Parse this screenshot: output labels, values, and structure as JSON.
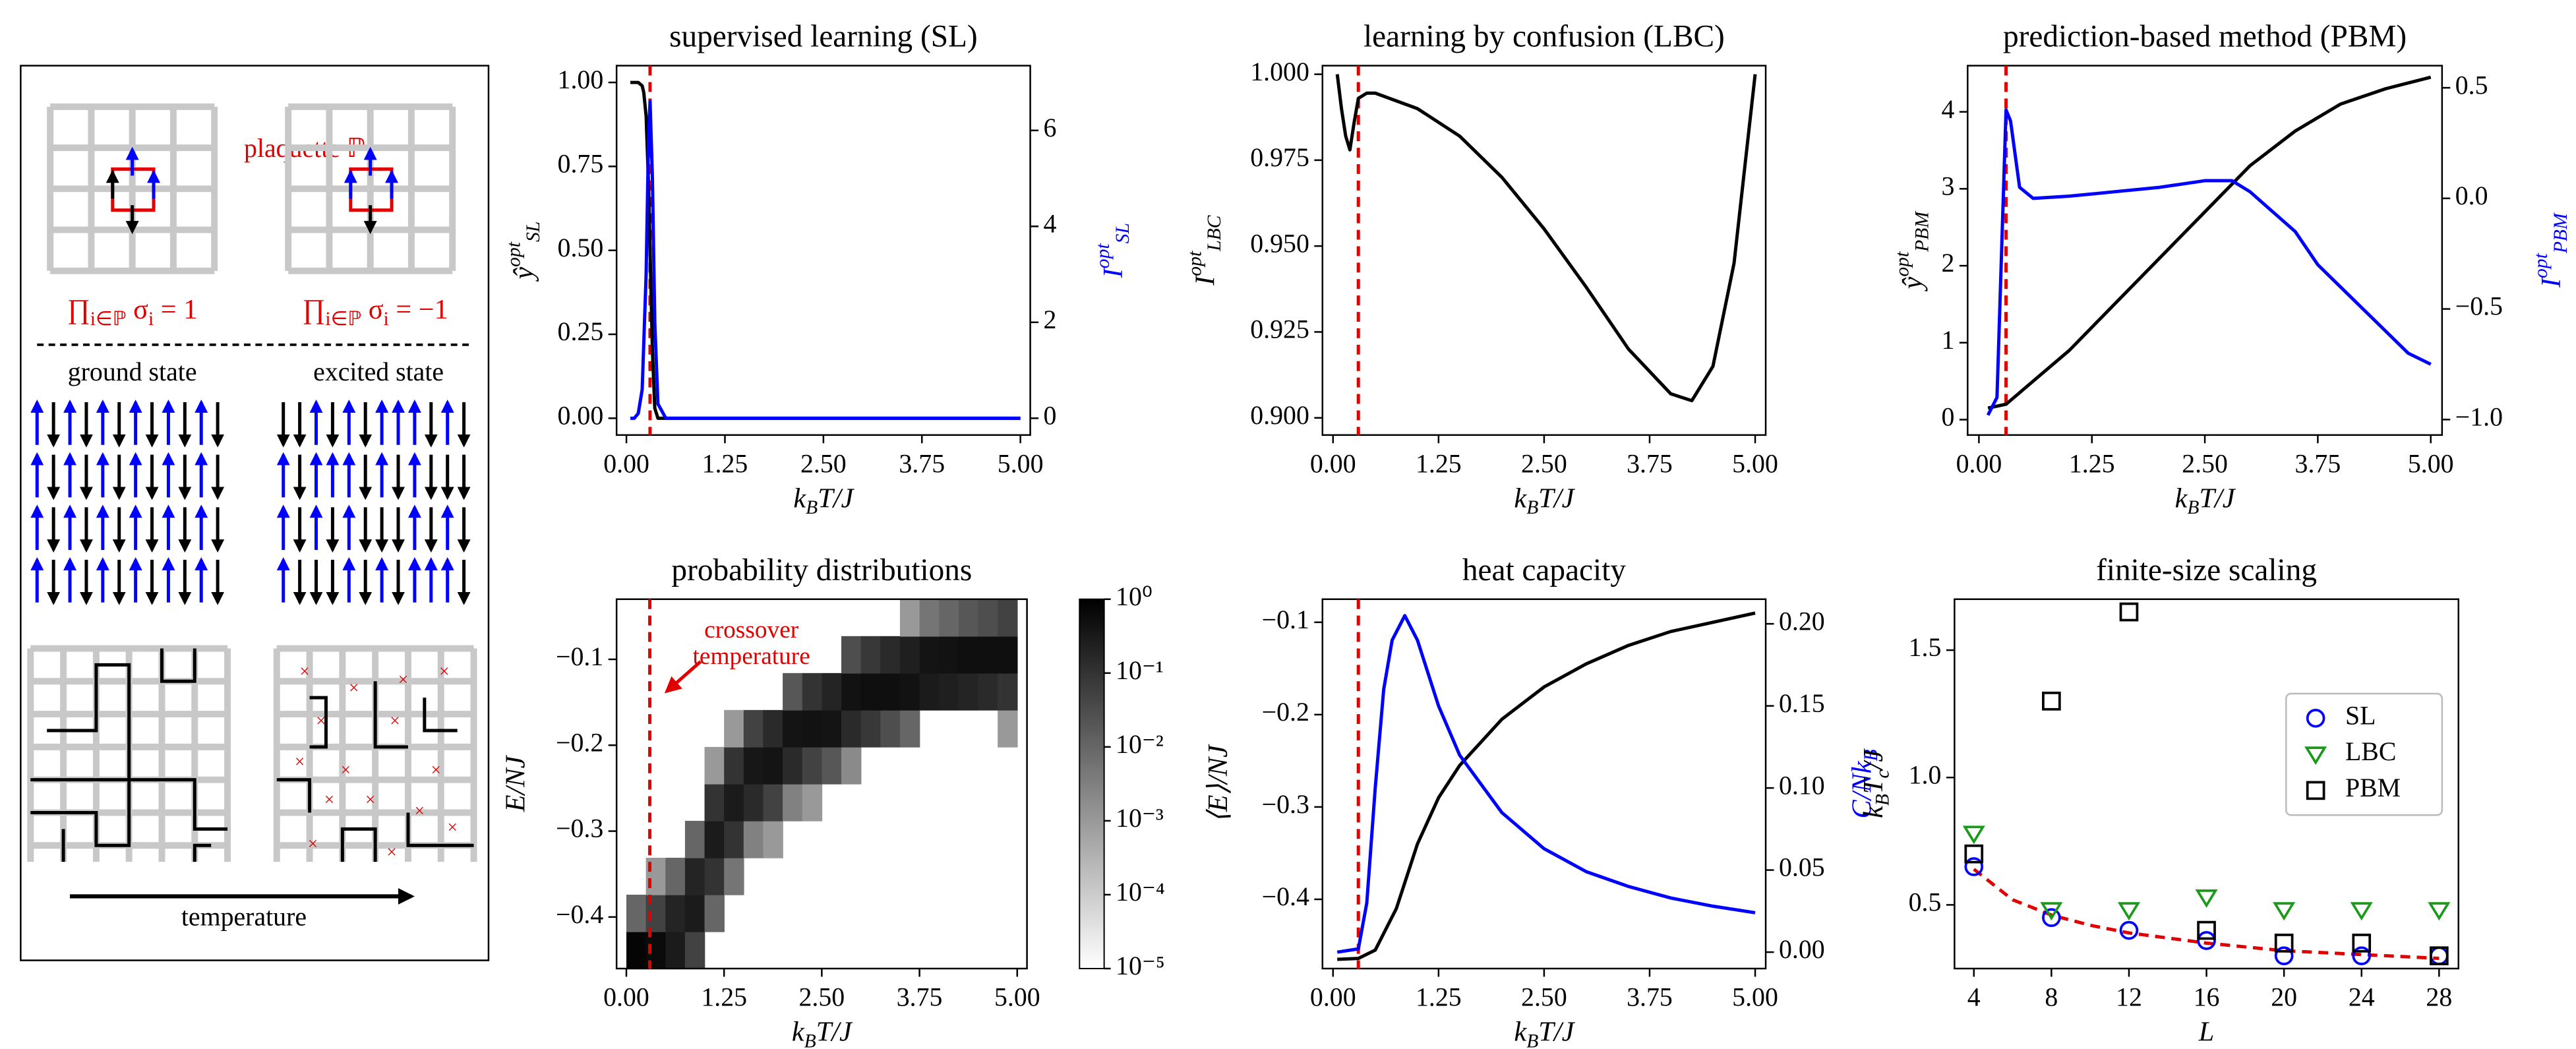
{
  "schematic": {
    "plaquette_label": "plaquette ℙ",
    "product_plus": "∏_{i∈ℙ} σ_{i} = 1",
    "product_minus": "∏_{i∈ℙ} σ_{i} = −1",
    "ground_state": "ground state",
    "excited_state": "excited state",
    "arrow_label": "temperature"
  },
  "chart_data": [
    {
      "type": "line",
      "title": "supervised learning (SL)",
      "xlabel": "k_{B}T/J",
      "ylabel": "ŷ^{opt}_{SL}",
      "y2label": "I^{opt}_{SL}",
      "xlim": [
        -0.125,
        5.125
      ],
      "xticks": [
        {
          "value": 0,
          "label": "0.00"
        },
        {
          "value": 1.25,
          "label": "1.25"
        },
        {
          "value": 2.5,
          "label": "2.50"
        },
        {
          "value": 3.75,
          "label": "3.75"
        },
        {
          "value": 5,
          "label": "5.00"
        }
      ],
      "ylim": [
        -0.05,
        1.05
      ],
      "yticks": [
        {
          "value": 0,
          "label": "0.00"
        },
        {
          "value": 0.25,
          "label": "0.25"
        },
        {
          "value": 0.5,
          "label": "0.50"
        },
        {
          "value": 0.75,
          "label": "0.75"
        },
        {
          "value": 1,
          "label": "1.00"
        }
      ],
      "y2lim": [
        -0.35,
        7.35
      ],
      "y2ticks": [
        0,
        2,
        4,
        6
      ],
      "y2color": "#0000ff",
      "crossover": 0.3,
      "crossover_color": "#e00000",
      "series": [
        {
          "color": "#000000",
          "x": [
            0.05,
            0.1,
            0.15,
            0.2,
            0.22,
            0.25,
            0.28,
            0.3,
            0.33,
            0.36,
            0.4,
            0.5,
            1,
            2,
            3,
            4,
            5
          ],
          "values": [
            1,
            1,
            1,
            0.99,
            0.97,
            0.9,
            0.7,
            0.5,
            0.2,
            0.03,
            0,
            0,
            0,
            0,
            0,
            0,
            0
          ]
        },
        {
          "color": "#0000ff",
          "axis": "y2",
          "x": [
            0.05,
            0.1,
            0.15,
            0.2,
            0.25,
            0.28,
            0.3,
            0.33,
            0.36,
            0.4,
            0.5,
            1,
            2,
            3,
            4,
            5
          ],
          "values": [
            0,
            0,
            0.1,
            0.6,
            3,
            5.8,
            6.6,
            5,
            2,
            0.3,
            0,
            0,
            0,
            0,
            0,
            0
          ]
        }
      ]
    },
    {
      "type": "line",
      "title": "learning by confusion (LBC)",
      "xlabel": "k_{B}T/J",
      "ylabel": "I^{opt}_{LBC}",
      "xlim": [
        -0.125,
        5.125
      ],
      "xticks": [
        {
          "value": 0,
          "label": "0.00"
        },
        {
          "value": 1.25,
          "label": "1.25"
        },
        {
          "value": 2.5,
          "label": "2.50"
        },
        {
          "value": 3.75,
          "label": "3.75"
        },
        {
          "value": 5,
          "label": "5.00"
        }
      ],
      "ylim": [
        0.895,
        1.0025
      ],
      "yticks": [
        {
          "value": 0.9,
          "label": "0.900"
        },
        {
          "value": 0.925,
          "label": "0.925"
        },
        {
          "value": 0.95,
          "label": "0.950"
        },
        {
          "value": 0.975,
          "label": "0.975"
        },
        {
          "value": 1,
          "label": "1.000"
        }
      ],
      "crossover": 0.3,
      "crossover_color": "#e00000",
      "series": [
        {
          "color": "#000000",
          "x": [
            0.05,
            0.1,
            0.15,
            0.2,
            0.25,
            0.3,
            0.4,
            0.5,
            1,
            1.5,
            2,
            2.5,
            3,
            3.5,
            4,
            4.25,
            4.5,
            4.75,
            5
          ],
          "values": [
            1,
            0.99,
            0.982,
            0.978,
            0.986,
            0.993,
            0.9945,
            0.9945,
            0.99,
            0.982,
            0.97,
            0.955,
            0.938,
            0.92,
            0.907,
            0.905,
            0.915,
            0.945,
            1
          ]
        }
      ]
    },
    {
      "type": "line",
      "title": "prediction-based method (PBM)",
      "xlabel": "k_{B}T/J",
      "ylabel": "ŷ^{opt}_{PBM}",
      "y2label": "I^{opt}_{PBM}",
      "xlim": [
        -0.125,
        5.125
      ],
      "xticks": [
        {
          "value": 0,
          "label": "0.00"
        },
        {
          "value": 1.25,
          "label": "1.25"
        },
        {
          "value": 2.5,
          "label": "2.50"
        },
        {
          "value": 3.75,
          "label": "3.75"
        },
        {
          "value": 5,
          "label": "5.00"
        }
      ],
      "ylim": [
        -0.2,
        4.6
      ],
      "yticks": [
        0,
        1,
        2,
        3,
        4
      ],
      "y2lim": [
        -1.07,
        0.6
      ],
      "y2ticks": [
        {
          "value": -1,
          "label": "−1.0"
        },
        {
          "value": -0.5,
          "label": "−0.5"
        },
        {
          "value": 0,
          "label": "0.0"
        },
        {
          "value": 0.5,
          "label": "0.5"
        }
      ],
      "y2color": "#0000ff",
      "crossover": 0.3,
      "crossover_color": "#e00000",
      "series": [
        {
          "color": "#000000",
          "x": [
            0.1,
            0.3,
            0.5,
            1,
            1.5,
            2,
            2.5,
            3,
            3.5,
            4,
            4.5,
            5
          ],
          "values": [
            0.15,
            0.2,
            0.4,
            0.9,
            1.5,
            2.1,
            2.7,
            3.3,
            3.75,
            4.1,
            4.3,
            4.45
          ]
        },
        {
          "color": "#0000ff",
          "axis": "y2",
          "x": [
            0.1,
            0.2,
            0.3,
            0.35,
            0.45,
            0.6,
            1,
            1.5,
            2,
            2.5,
            2.8,
            3,
            3.5,
            3.75,
            4,
            4.5,
            4.75,
            5
          ],
          "values": [
            -0.98,
            -0.9,
            0.4,
            0.35,
            0.05,
            0,
            0.01,
            0.03,
            0.05,
            0.08,
            0.08,
            0.03,
            -0.15,
            -0.3,
            -0.4,
            -0.6,
            -0.7,
            -0.75
          ]
        }
      ]
    },
    {
      "type": "heatmap",
      "title": "probability distributions",
      "xlabel": "k_{B}T/J",
      "ylabel": "E/NJ",
      "xlim": [
        -0.125,
        5.125
      ],
      "xticks": [
        {
          "value": 0,
          "label": "0.00"
        },
        {
          "value": 1.25,
          "label": "1.25"
        },
        {
          "value": 2.5,
          "label": "2.50"
        },
        {
          "value": 3.75,
          "label": "3.75"
        },
        {
          "value": 5,
          "label": "5.00"
        }
      ],
      "ylim": [
        -0.46,
        -0.03
      ],
      "yticks": [
        {
          "value": -0.4,
          "label": "−0.4"
        },
        {
          "value": -0.3,
          "label": "−0.3"
        },
        {
          "value": -0.2,
          "label": "−0.2"
        },
        {
          "value": -0.1,
          "label": "−0.1"
        }
      ],
      "crossover": 0.3,
      "crossover_color": "#e00000",
      "annotation": [
        "crossover",
        "temperature"
      ],
      "xbins": [
        0,
        0.25,
        0.5,
        0.75,
        1,
        1.25,
        1.5,
        1.75,
        2,
        2.25,
        2.5,
        2.75,
        3,
        3.25,
        3.5,
        3.75,
        4,
        4.25,
        4.5,
        4.75,
        5
      ],
      "ybins": [
        -0.46,
        -0.417,
        -0.374,
        -0.331,
        -0.288,
        -0.245,
        -0.202,
        -0.159,
        -0.116,
        -0.073,
        -0.03
      ],
      "z": [
        [
          0.8,
          0.6,
          0.3,
          0.05,
          null,
          null,
          null,
          null,
          null,
          null,
          null,
          null,
          null,
          null,
          null,
          null,
          null,
          null,
          null,
          null
        ],
        [
          0.01,
          0.05,
          0.2,
          0.3,
          0.01,
          null,
          null,
          null,
          null,
          null,
          null,
          null,
          null,
          null,
          null,
          null,
          null,
          null,
          null,
          null
        ],
        [
          null,
          0.001,
          0.01,
          0.2,
          0.1,
          0.005,
          null,
          null,
          null,
          null,
          null,
          null,
          null,
          null,
          null,
          null,
          null,
          null,
          null,
          null
        ],
        [
          null,
          null,
          null,
          0.01,
          0.3,
          0.1,
          0.003,
          0.001,
          null,
          null,
          null,
          null,
          null,
          null,
          null,
          null,
          null,
          null,
          null,
          null
        ],
        [
          null,
          null,
          null,
          null,
          0.1,
          0.3,
          0.15,
          0.05,
          0.003,
          0.001,
          null,
          null,
          null,
          null,
          null,
          null,
          null,
          null,
          null,
          null
        ],
        [
          null,
          null,
          null,
          null,
          0.001,
          0.1,
          0.35,
          0.4,
          0.15,
          0.05,
          0.02,
          0.002,
          null,
          null,
          null,
          null,
          null,
          null,
          null,
          null
        ],
        [
          null,
          null,
          null,
          null,
          null,
          0.001,
          0.05,
          0.15,
          0.4,
          0.45,
          0.4,
          0.15,
          0.08,
          0.03,
          0.01,
          null,
          null,
          null,
          null,
          0.001
        ],
        [
          null,
          null,
          null,
          null,
          null,
          null,
          null,
          null,
          0.02,
          0.1,
          0.2,
          0.45,
          0.5,
          0.5,
          0.45,
          0.3,
          0.25,
          0.2,
          0.15,
          0.1
        ],
        [
          null,
          null,
          null,
          null,
          null,
          null,
          null,
          null,
          null,
          null,
          null,
          0.03,
          0.08,
          0.15,
          0.25,
          0.4,
          0.45,
          0.5,
          0.5,
          0.5
        ],
        [
          null,
          null,
          null,
          null,
          null,
          null,
          null,
          null,
          null,
          null,
          null,
          null,
          null,
          null,
          0.001,
          0.005,
          0.01,
          0.02,
          0.03,
          0.05
        ]
      ],
      "colorbar": {
        "scale": "log",
        "lim": [
          1e-05,
          1
        ],
        "ticks": [
          {
            "value": 1,
            "label": "10⁰"
          },
          {
            "value": 0.1,
            "label": "10⁻¹"
          },
          {
            "value": 0.01,
            "label": "10⁻²"
          },
          {
            "value": 0.001,
            "label": "10⁻³"
          },
          {
            "value": 0.0001,
            "label": "10⁻⁴"
          },
          {
            "value": 1e-05,
            "label": "10⁻⁵"
          }
        ]
      }
    },
    {
      "type": "line",
      "title": "heat capacity",
      "xlabel": "k_{B}T/J",
      "ylabel": "⟨E⟩/NJ",
      "y2label": "C/Nk_{B}",
      "xlim": [
        -0.125,
        5.125
      ],
      "xticks": [
        {
          "value": 0,
          "label": "0.00"
        },
        {
          "value": 1.25,
          "label": "1.25"
        },
        {
          "value": 2.5,
          "label": "2.50"
        },
        {
          "value": 3.75,
          "label": "3.75"
        },
        {
          "value": 5,
          "label": "5.00"
        }
      ],
      "ylim": [
        -0.475,
        -0.075
      ],
      "yticks": [
        {
          "value": -0.4,
          "label": "−0.4"
        },
        {
          "value": -0.3,
          "label": "−0.3"
        },
        {
          "value": -0.2,
          "label": "−0.2"
        },
        {
          "value": -0.1,
          "label": "−0.1"
        }
      ],
      "y2lim": [
        -0.01,
        0.215
      ],
      "y2ticks": [
        {
          "value": 0,
          "label": "0.00"
        },
        {
          "value": 0.05,
          "label": "0.05"
        },
        {
          "value": 0.1,
          "label": "0.10"
        },
        {
          "value": 0.15,
          "label": "0.15"
        },
        {
          "value": 0.2,
          "label": "0.20"
        }
      ],
      "y2color": "#0000ff",
      "crossover": 0.3,
      "crossover_color": "#e00000",
      "series": [
        {
          "color": "#000000",
          "x": [
            0.05,
            0.3,
            0.5,
            0.75,
            1,
            1.25,
            1.5,
            2,
            2.5,
            3,
            3.5,
            4,
            4.5,
            5
          ],
          "values": [
            -0.465,
            -0.464,
            -0.455,
            -0.41,
            -0.34,
            -0.29,
            -0.255,
            -0.205,
            -0.17,
            -0.145,
            -0.125,
            -0.11,
            -0.1,
            -0.09
          ]
        },
        {
          "color": "#0000ff",
          "axis": "y2",
          "x": [
            0.05,
            0.3,
            0.4,
            0.5,
            0.6,
            0.7,
            0.85,
            1,
            1.25,
            1.5,
            2,
            2.5,
            3,
            3.5,
            4,
            4.5,
            5
          ],
          "values": [
            0,
            0.002,
            0.03,
            0.1,
            0.16,
            0.19,
            0.205,
            0.19,
            0.15,
            0.12,
            0.085,
            0.063,
            0.049,
            0.04,
            0.033,
            0.028,
            0.024
          ]
        }
      ]
    },
    {
      "type": "scatter",
      "title": "finite-size scaling",
      "xlabel": "L",
      "ylabel": "k_{B}T_{c}/J",
      "xlim": [
        3,
        29
      ],
      "xticks": [
        4,
        8,
        12,
        16,
        20,
        24,
        28
      ],
      "ylim": [
        0.25,
        1.7
      ],
      "yticks": [
        {
          "value": 0.5,
          "label": "0.5"
        },
        {
          "value": 1,
          "label": "1.0"
        },
        {
          "value": 1.5,
          "label": "1.5"
        }
      ],
      "legend": "right",
      "series": [
        {
          "name": "SL",
          "color": "#0000ff",
          "marker": "circle",
          "x": [
            4,
            8,
            12,
            16,
            20,
            24,
            28
          ],
          "values": [
            0.65,
            0.45,
            0.4,
            0.36,
            0.3,
            0.3,
            0.3
          ]
        },
        {
          "name": "LBC",
          "color": "#1a9a1a",
          "marker": "triangle",
          "x": [
            4,
            8,
            12,
            16,
            20,
            24,
            28
          ],
          "values": [
            0.78,
            0.48,
            0.48,
            0.53,
            0.48,
            0.48,
            0.48
          ]
        },
        {
          "name": "PBM",
          "color": "#000000",
          "marker": "square",
          "x": [
            4,
            8,
            12,
            16,
            20,
            24,
            28
          ],
          "values": [
            0.7,
            1.3,
            1.65,
            0.4,
            0.35,
            0.35,
            0.3
          ]
        }
      ],
      "fit": {
        "color": "#e00000",
        "x": [
          4,
          6,
          8,
          10,
          12,
          16,
          20,
          24,
          28
        ],
        "values": [
          0.64,
          0.52,
          0.46,
          0.42,
          0.39,
          0.35,
          0.32,
          0.305,
          0.29
        ]
      }
    }
  ]
}
